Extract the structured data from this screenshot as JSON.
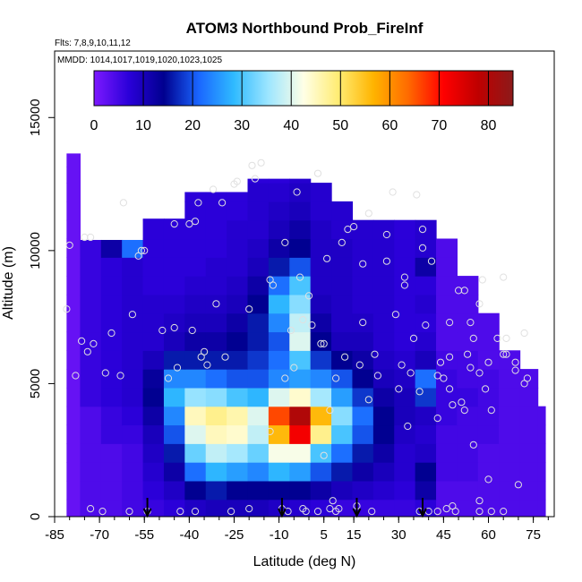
{
  "chart_data": {
    "type": "heatmap",
    "title": "ATOM3 Northbound Prob_FireInf",
    "subtitle_flights": "Flts: 7,8,9,10,11,12",
    "subtitle_dates": "MMDD: 1014,1017,1019,1020,1023,1025",
    "xlabel": "Latitude (deg N)",
    "ylabel": "Altitude (m)",
    "xlim": [
      -85,
      82
    ],
    "ylim": [
      0,
      17500
    ],
    "x_ticks": [
      -85,
      -70,
      -55,
      -40,
      -25,
      -10,
      5,
      15,
      30,
      45,
      60,
      75
    ],
    "x_tick_labels": [
      "-85",
      "-70",
      "-55",
      "-40",
      "-25",
      "-10",
      "5",
      "15",
      "30",
      "45",
      "60",
      "75"
    ],
    "y_ticks": [
      0,
      5000,
      10000,
      15000
    ],
    "y_tick_labels": [
      "0",
      "5000",
      "10000",
      "15000"
    ],
    "colorbar": {
      "min": 0,
      "max": 85,
      "ticks": [
        0,
        10,
        20,
        30,
        40,
        50,
        60,
        70,
        80
      ],
      "tick_labels": [
        "0",
        "10",
        "20",
        "30",
        "40",
        "50",
        "60",
        "70",
        "80"
      ]
    },
    "palette": [
      "#7d19ff",
      "#2a00d9",
      "#00008f",
      "#1a66ff",
      "#2fbaff",
      "#9ee6ff",
      "#ffffe6",
      "#ffec73",
      "#ffb400",
      "#ff6a00",
      "#ff0000",
      "#bf0000",
      "#8c1a1a"
    ],
    "arrows_lat": [
      -54,
      -9,
      16,
      38
    ],
    "grid_lat": [
      -80,
      -73,
      -66,
      -59,
      -52,
      -45,
      -38,
      -31,
      -24,
      -17,
      -10,
      -3,
      4,
      11,
      18,
      25,
      32,
      39,
      46,
      53,
      60,
      67,
      74,
      79
    ],
    "grid_alt": [
      300,
      1000,
      1700,
      2400,
      3100,
      3800,
      4500,
      5200,
      5900,
      6600,
      7300,
      8000,
      8700,
      9400,
      10100,
      10800,
      11500,
      12200,
      12900,
      13400
    ],
    "grid_top_alt": [
      null,
      10400,
      10400,
      10400,
      11200,
      11200,
      12200,
      12200,
      12200,
      12700,
      12700,
      12700,
      13300,
      13300,
      12700,
      12700,
      12200,
      12200,
      11200,
      11200,
      11200,
      10400,
      9200,
      6800
    ],
    "grid_values": [
      [
        2,
        2,
        2,
        2,
        2,
        2,
        2,
        2,
        2,
        2,
        2,
        2,
        2,
        2,
        2,
        2,
        2,
        2,
        2,
        2
      ],
      [
        4,
        4,
        4,
        4,
        4,
        4,
        6,
        6,
        6,
        6,
        6,
        6,
        6,
        6,
        6,
        6,
        null,
        null,
        null,
        null
      ],
      [
        4,
        4,
        4,
        4,
        6,
        6,
        7,
        7,
        7,
        7,
        7,
        7,
        7,
        7,
        12,
        6,
        null,
        null,
        null,
        null
      ],
      [
        5,
        5,
        5,
        5,
        6,
        7,
        8,
        8,
        8,
        8,
        8,
        8,
        8,
        8,
        22,
        10,
        null,
        null,
        null,
        null
      ],
      [
        6,
        7,
        8,
        9,
        10,
        12,
        14,
        13,
        10,
        8,
        8,
        8,
        7,
        7,
        7,
        7,
        7,
        null,
        null,
        null
      ],
      [
        7,
        9,
        12,
        16,
        20,
        24,
        28,
        24,
        16,
        10,
        9,
        8,
        7,
        7,
        7,
        7,
        7,
        null,
        null,
        null
      ],
      [
        9,
        14,
        22,
        32,
        40,
        45,
        35,
        24,
        16,
        12,
        10,
        9,
        8,
        7,
        7,
        7,
        7,
        7,
        null,
        null
      ],
      [
        10,
        16,
        28,
        38,
        45,
        48,
        34,
        22,
        16,
        12,
        10,
        9,
        8,
        8,
        7,
        7,
        7,
        7,
        null,
        null
      ],
      [
        10,
        14,
        26,
        36,
        44,
        46,
        30,
        20,
        16,
        14,
        12,
        10,
        9,
        8,
        8,
        8,
        7,
        7,
        7,
        null
      ],
      [
        10,
        14,
        24,
        32,
        38,
        40,
        28,
        20,
        18,
        16,
        16,
        14,
        12,
        10,
        9,
        8,
        8,
        8,
        7,
        null
      ],
      [
        9,
        14,
        28,
        42,
        56,
        66,
        40,
        24,
        22,
        20,
        24,
        28,
        22,
        16,
        12,
        10,
        9,
        8,
        7,
        null
      ],
      [
        8,
        14,
        26,
        42,
        72,
        80,
        44,
        26,
        30,
        40,
        38,
        34,
        30,
        20,
        14,
        12,
        10,
        9,
        8,
        null
      ],
      [
        7,
        12,
        20,
        30,
        48,
        56,
        36,
        24,
        18,
        14,
        12,
        10,
        9,
        9,
        9,
        9,
        8,
        8,
        null,
        null
      ],
      [
        6,
        10,
        16,
        22,
        30,
        34,
        26,
        20,
        14,
        10,
        9,
        9,
        9,
        9,
        9,
        8,
        8,
        null,
        null,
        null
      ],
      [
        6,
        9,
        12,
        16,
        20,
        22,
        18,
        14,
        12,
        10,
        9,
        8,
        8,
        8,
        8,
        8,
        null,
        null,
        null,
        null
      ],
      [
        6,
        8,
        10,
        12,
        14,
        14,
        12,
        10,
        9,
        8,
        8,
        8,
        8,
        8,
        8,
        8,
        null,
        null,
        null,
        null
      ],
      [
        6,
        7,
        8,
        8,
        9,
        10,
        10,
        9,
        8,
        7,
        7,
        7,
        7,
        7,
        7,
        7,
        null,
        null,
        null,
        null
      ],
      [
        7,
        12,
        14,
        9,
        8,
        9,
        18,
        22,
        10,
        8,
        7,
        8,
        7,
        12,
        8,
        8,
        null,
        null,
        null,
        null
      ],
      [
        4,
        4,
        5,
        5,
        5,
        6,
        6,
        6,
        5,
        4,
        4,
        4,
        4,
        4,
        4,
        null,
        null,
        null,
        null,
        null
      ],
      [
        4,
        4,
        5,
        5,
        5,
        5,
        6,
        5,
        5,
        4,
        4,
        4,
        4,
        null,
        null,
        null,
        null,
        null,
        null,
        null
      ],
      [
        4,
        4,
        4,
        4,
        5,
        5,
        5,
        5,
        4,
        4,
        4,
        null,
        null,
        null,
        null,
        null,
        null,
        null,
        null,
        null
      ],
      [
        4,
        4,
        4,
        4,
        4,
        4,
        4,
        4,
        4,
        null,
        null,
        null,
        null,
        null,
        null,
        null,
        null,
        null,
        null,
        null
      ],
      [
        4,
        4,
        4,
        4,
        4,
        4,
        4,
        4,
        null,
        null,
        null,
        null,
        null,
        null,
        null,
        null,
        null,
        null,
        null,
        null
      ],
      [
        4,
        4,
        4,
        4,
        4,
        4,
        null,
        null,
        null,
        null,
        null,
        null,
        null,
        null,
        null,
        null,
        null,
        null,
        null,
        null
      ]
    ],
    "sample_points": [
      [
        -81,
        7800
      ],
      [
        -80,
        10200
      ],
      [
        -78,
        5300
      ],
      [
        -76,
        6600
      ],
      [
        -75,
        10500
      ],
      [
        -74,
        6200
      ],
      [
        -73,
        10500
      ],
      [
        -73,
        300
      ],
      [
        -72,
        6500
      ],
      [
        -69,
        200
      ],
      [
        -68,
        5400
      ],
      [
        -66,
        6900
      ],
      [
        -63,
        5300
      ],
      [
        -62,
        11800
      ],
      [
        -60,
        200
      ],
      [
        -59,
        7600
      ],
      [
        -57,
        9800
      ],
      [
        -56,
        10000
      ],
      [
        -55,
        10000
      ],
      [
        -54,
        200
      ],
      [
        -49,
        7000
      ],
      [
        -47,
        5200
      ],
      [
        -45,
        11000
      ],
      [
        -45,
        7100
      ],
      [
        -44,
        5600
      ],
      [
        -43,
        200
      ],
      [
        -40,
        11000
      ],
      [
        -39,
        7000
      ],
      [
        -38,
        11100
      ],
      [
        -38,
        200
      ],
      [
        -37,
        11800
      ],
      [
        -36,
        6000
      ],
      [
        -35,
        6200
      ],
      [
        -34,
        5700
      ],
      [
        -32,
        12300
      ],
      [
        -31,
        8000
      ],
      [
        -29,
        11800
      ],
      [
        -28,
        6000
      ],
      [
        -26,
        200
      ],
      [
        -25,
        12500
      ],
      [
        -24,
        12600
      ],
      [
        -20,
        300
      ],
      [
        -20,
        7800
      ],
      [
        -19,
        13200
      ],
      [
        -18,
        12700
      ],
      [
        -16,
        13300
      ],
      [
        -13,
        8900
      ],
      [
        -13,
        3200
      ],
      [
        -12,
        8700
      ],
      [
        -9,
        300
      ],
      [
        -8,
        5200
      ],
      [
        -8,
        10300
      ],
      [
        -7,
        200
      ],
      [
        -6,
        7000
      ],
      [
        -5,
        5600
      ],
      [
        -4,
        12200
      ],
      [
        -3,
        9000
      ],
      [
        -2,
        300
      ],
      [
        -2,
        7400
      ],
      [
        -1,
        200
      ],
      [
        0,
        8300
      ],
      [
        1,
        7200
      ],
      [
        3,
        12900
      ],
      [
        3,
        200
      ],
      [
        4,
        6500
      ],
      [
        5,
        2300
      ],
      [
        5,
        6500
      ],
      [
        6,
        9700
      ],
      [
        7,
        4000
      ],
      [
        7,
        300
      ],
      [
        8,
        600
      ],
      [
        9,
        5200
      ],
      [
        9,
        200
      ],
      [
        10,
        300
      ],
      [
        11,
        10300
      ],
      [
        12,
        6000
      ],
      [
        13,
        10800
      ],
      [
        15,
        10900
      ],
      [
        16,
        400
      ],
      [
        17,
        5700
      ],
      [
        18,
        7300
      ],
      [
        18,
        9500
      ],
      [
        20,
        11400
      ],
      [
        20,
        4400
      ],
      [
        21,
        200
      ],
      [
        22,
        6100
      ],
      [
        23,
        5300
      ],
      [
        26,
        10600
      ],
      [
        26,
        9600
      ],
      [
        28,
        12200
      ],
      [
        29,
        7600
      ],
      [
        30,
        4800
      ],
      [
        31,
        5700
      ],
      [
        32,
        8700
      ],
      [
        32,
        9000
      ],
      [
        33,
        3400
      ],
      [
        34,
        5400
      ],
      [
        35,
        6700
      ],
      [
        36,
        12100
      ],
      [
        37,
        200
      ],
      [
        37,
        4700
      ],
      [
        38,
        10100
      ],
      [
        38,
        10800
      ],
      [
        39,
        7200
      ],
      [
        40,
        200
      ],
      [
        41,
        9600
      ],
      [
        43,
        3700
      ],
      [
        43,
        200
      ],
      [
        43,
        5300
      ],
      [
        44,
        5800
      ],
      [
        45,
        5200
      ],
      [
        46,
        300
      ],
      [
        47,
        7300
      ],
      [
        47,
        6000
      ],
      [
        47,
        4800
      ],
      [
        48,
        4200
      ],
      [
        48,
        400
      ],
      [
        49,
        200
      ],
      [
        50,
        8500
      ],
      [
        51,
        4300
      ],
      [
        52,
        8500
      ],
      [
        52,
        4000
      ],
      [
        53,
        6100
      ],
      [
        54,
        7300
      ],
      [
        54,
        5600
      ],
      [
        55,
        6700
      ],
      [
        55,
        2700
      ],
      [
        57,
        5400
      ],
      [
        57,
        600
      ],
      [
        57,
        200
      ],
      [
        57,
        8000
      ],
      [
        58,
        8900
      ],
      [
        59,
        4800
      ],
      [
        60,
        5800
      ],
      [
        60,
        1400
      ],
      [
        61,
        200
      ],
      [
        61,
        4000
      ],
      [
        63,
        6700
      ],
      [
        65,
        200
      ],
      [
        65,
        9000
      ],
      [
        65,
        6100
      ],
      [
        66,
        6700
      ],
      [
        66,
        6100
      ],
      [
        69,
        5800
      ],
      [
        69,
        5500
      ],
      [
        70,
        1200
      ],
      [
        72,
        5000
      ],
      [
        72,
        6900
      ],
      [
        73,
        5200
      ]
    ]
  }
}
